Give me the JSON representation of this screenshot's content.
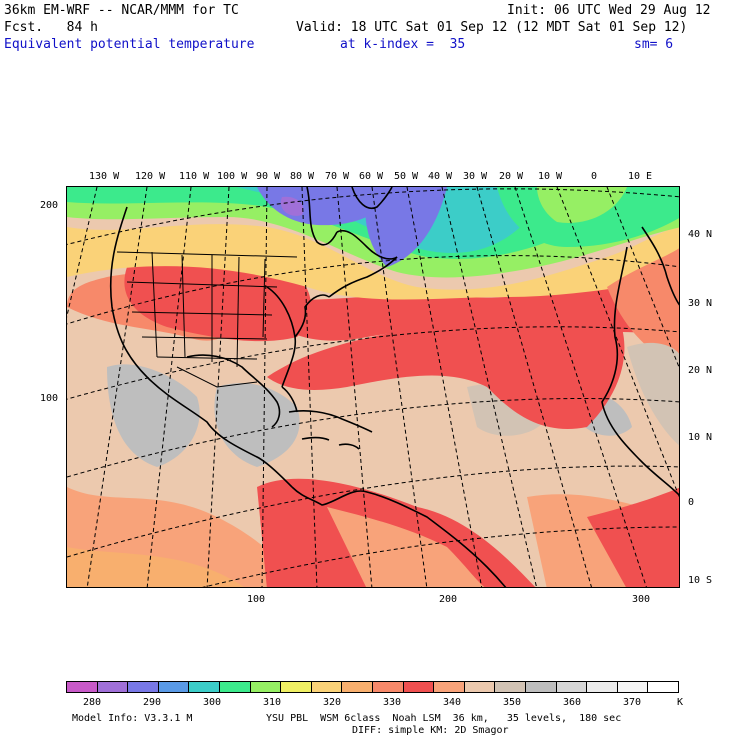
{
  "header": {
    "model_title": "36km EM-WRF -- NCAR/MMM for TC",
    "forecast": "Fcst.   84 h",
    "init": "Init: 06 UTC Wed 29 Aug 12",
    "valid": "Valid: 18 UTC Sat 01 Sep 12 (12 MDT Sat 01 Sep 12)",
    "field": "Equivalent potential temperature",
    "level": "at k-index =  35",
    "smoothing": "sm= 6"
  },
  "map": {
    "top_lon_labels": [
      "130 W",
      "120 W",
      "110 W",
      "100 W",
      "90 W",
      "80 W",
      "70 W",
      "60 W",
      "50 W",
      "40 W",
      "30 W",
      "20 W",
      "10 W",
      "0",
      "10 E"
    ],
    "right_lat_labels": [
      "40 N",
      "30 N",
      "20 N",
      "10 N",
      "0",
      "10 S"
    ],
    "left_grid_labels": [
      "200",
      "100"
    ],
    "bottom_grid_labels": [
      "100",
      "200",
      "300"
    ]
  },
  "colorbar": {
    "colors": [
      "#c85ac8",
      "#a070d8",
      "#7878e6",
      "#5a9ae6",
      "#3ccdc8",
      "#3cea8c",
      "#96ef64",
      "#f0f064",
      "#fad278",
      "#f8af6e",
      "#f7896a",
      "#f05050",
      "#f8a37a",
      "#ecc9ae",
      "#d2c3b4",
      "#bebebe",
      "#d6d6d6",
      "#ebebeb",
      "#f5f5f5",
      "#ffffff"
    ],
    "labels": [
      "280",
      "290",
      "300",
      "310",
      "320",
      "330",
      "340",
      "350",
      "360",
      "370"
    ],
    "unit": "K"
  },
  "footer": {
    "model_info": "Model Info: V3.3.1 M",
    "physics": "YSU PBL  WSM 6class  Noah LSM  36 km,   35 levels,  180 sec",
    "diffusion": "DIFF: simple KM: 2D Smagor"
  }
}
